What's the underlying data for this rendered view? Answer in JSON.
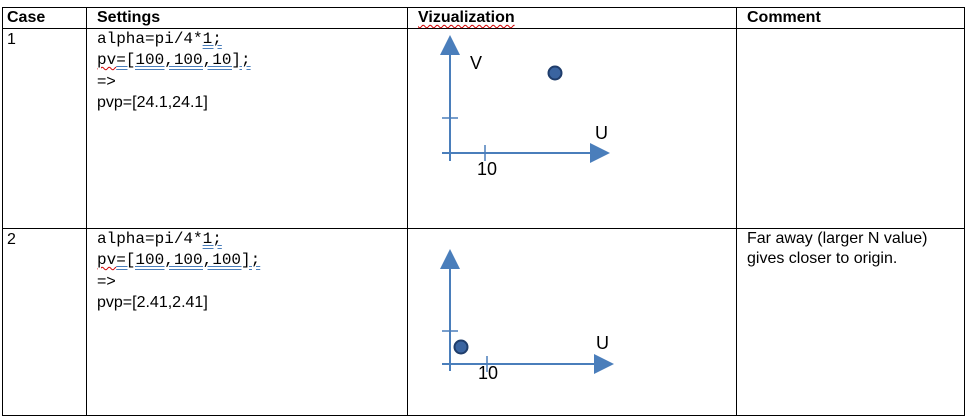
{
  "headers": {
    "case": "Case",
    "settings": "Settings",
    "visualization": "Vizualization",
    "comment": "Comment"
  },
  "rows": [
    {
      "case": "1",
      "alpha_prefix": "alpha=pi/4*",
      "alpha_suffix": "1;",
      "pv_prefix": "pv",
      "pv_rest": "=[100,100,10];",
      "arrow": "=>",
      "pvp": "pvp=[24.1,24.1]",
      "axis_v": "V",
      "axis_u": "U",
      "tick_label": "10",
      "comment": ""
    },
    {
      "case": "2",
      "alpha_prefix": "alpha=pi/4*",
      "alpha_suffix": "1;",
      "pv_prefix": "pv",
      "pv_rest": "=[100,100,100];",
      "arrow": "=>",
      "pvp": "pvp=[2.41,2.41]",
      "axis_v": "",
      "axis_u": "U",
      "tick_label": "10",
      "comment": "Far away (larger N value) gives closer to origin."
    }
  ],
  "colors": {
    "axis": "#4a7ebb",
    "point_fill": "#3a64a0",
    "point_stroke": "#1f3d6b"
  }
}
